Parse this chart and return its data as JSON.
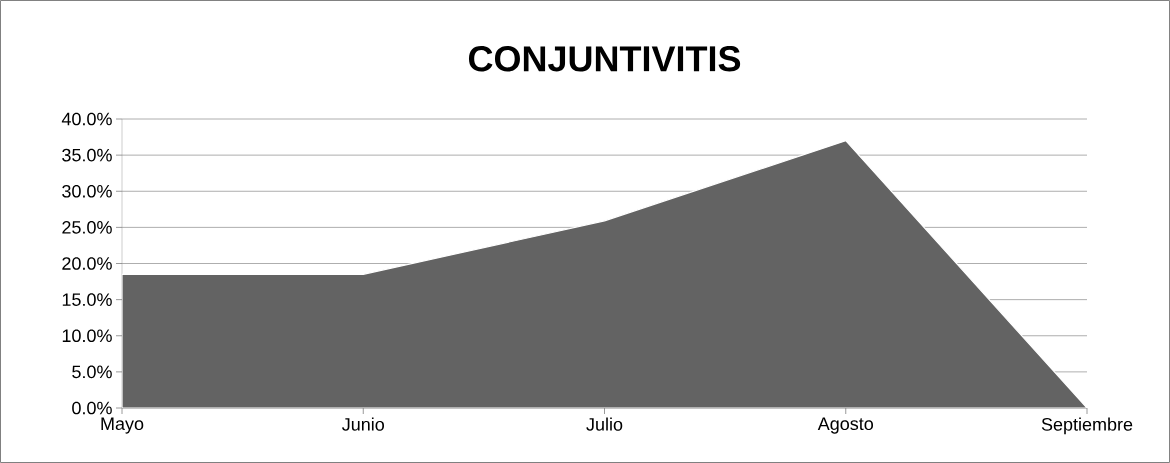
{
  "chart_data": {
    "type": "area",
    "title": "CONJUNTIVITIS",
    "categories": [
      "Mayo",
      "Junio",
      "Julio",
      "Agosto",
      "Septiembre"
    ],
    "values": [
      18.5,
      18.5,
      25.9,
      37.0,
      0
    ],
    "color": "#636363",
    "ylim": [
      0,
      40
    ],
    "yticks": [
      {
        "value": 0,
        "label": "0.0%"
      },
      {
        "value": 5,
        "label": "5.0%"
      },
      {
        "value": 10,
        "label": "10.0%"
      },
      {
        "value": 15,
        "label": "15.0%"
      },
      {
        "value": 20,
        "label": "20.0%"
      },
      {
        "value": 25,
        "label": "25.0%"
      },
      {
        "value": 30,
        "label": "30.0%"
      },
      {
        "value": 35,
        "label": "35.0%"
      },
      {
        "value": 40,
        "label": "40.0%"
      }
    ],
    "grid": "y"
  }
}
